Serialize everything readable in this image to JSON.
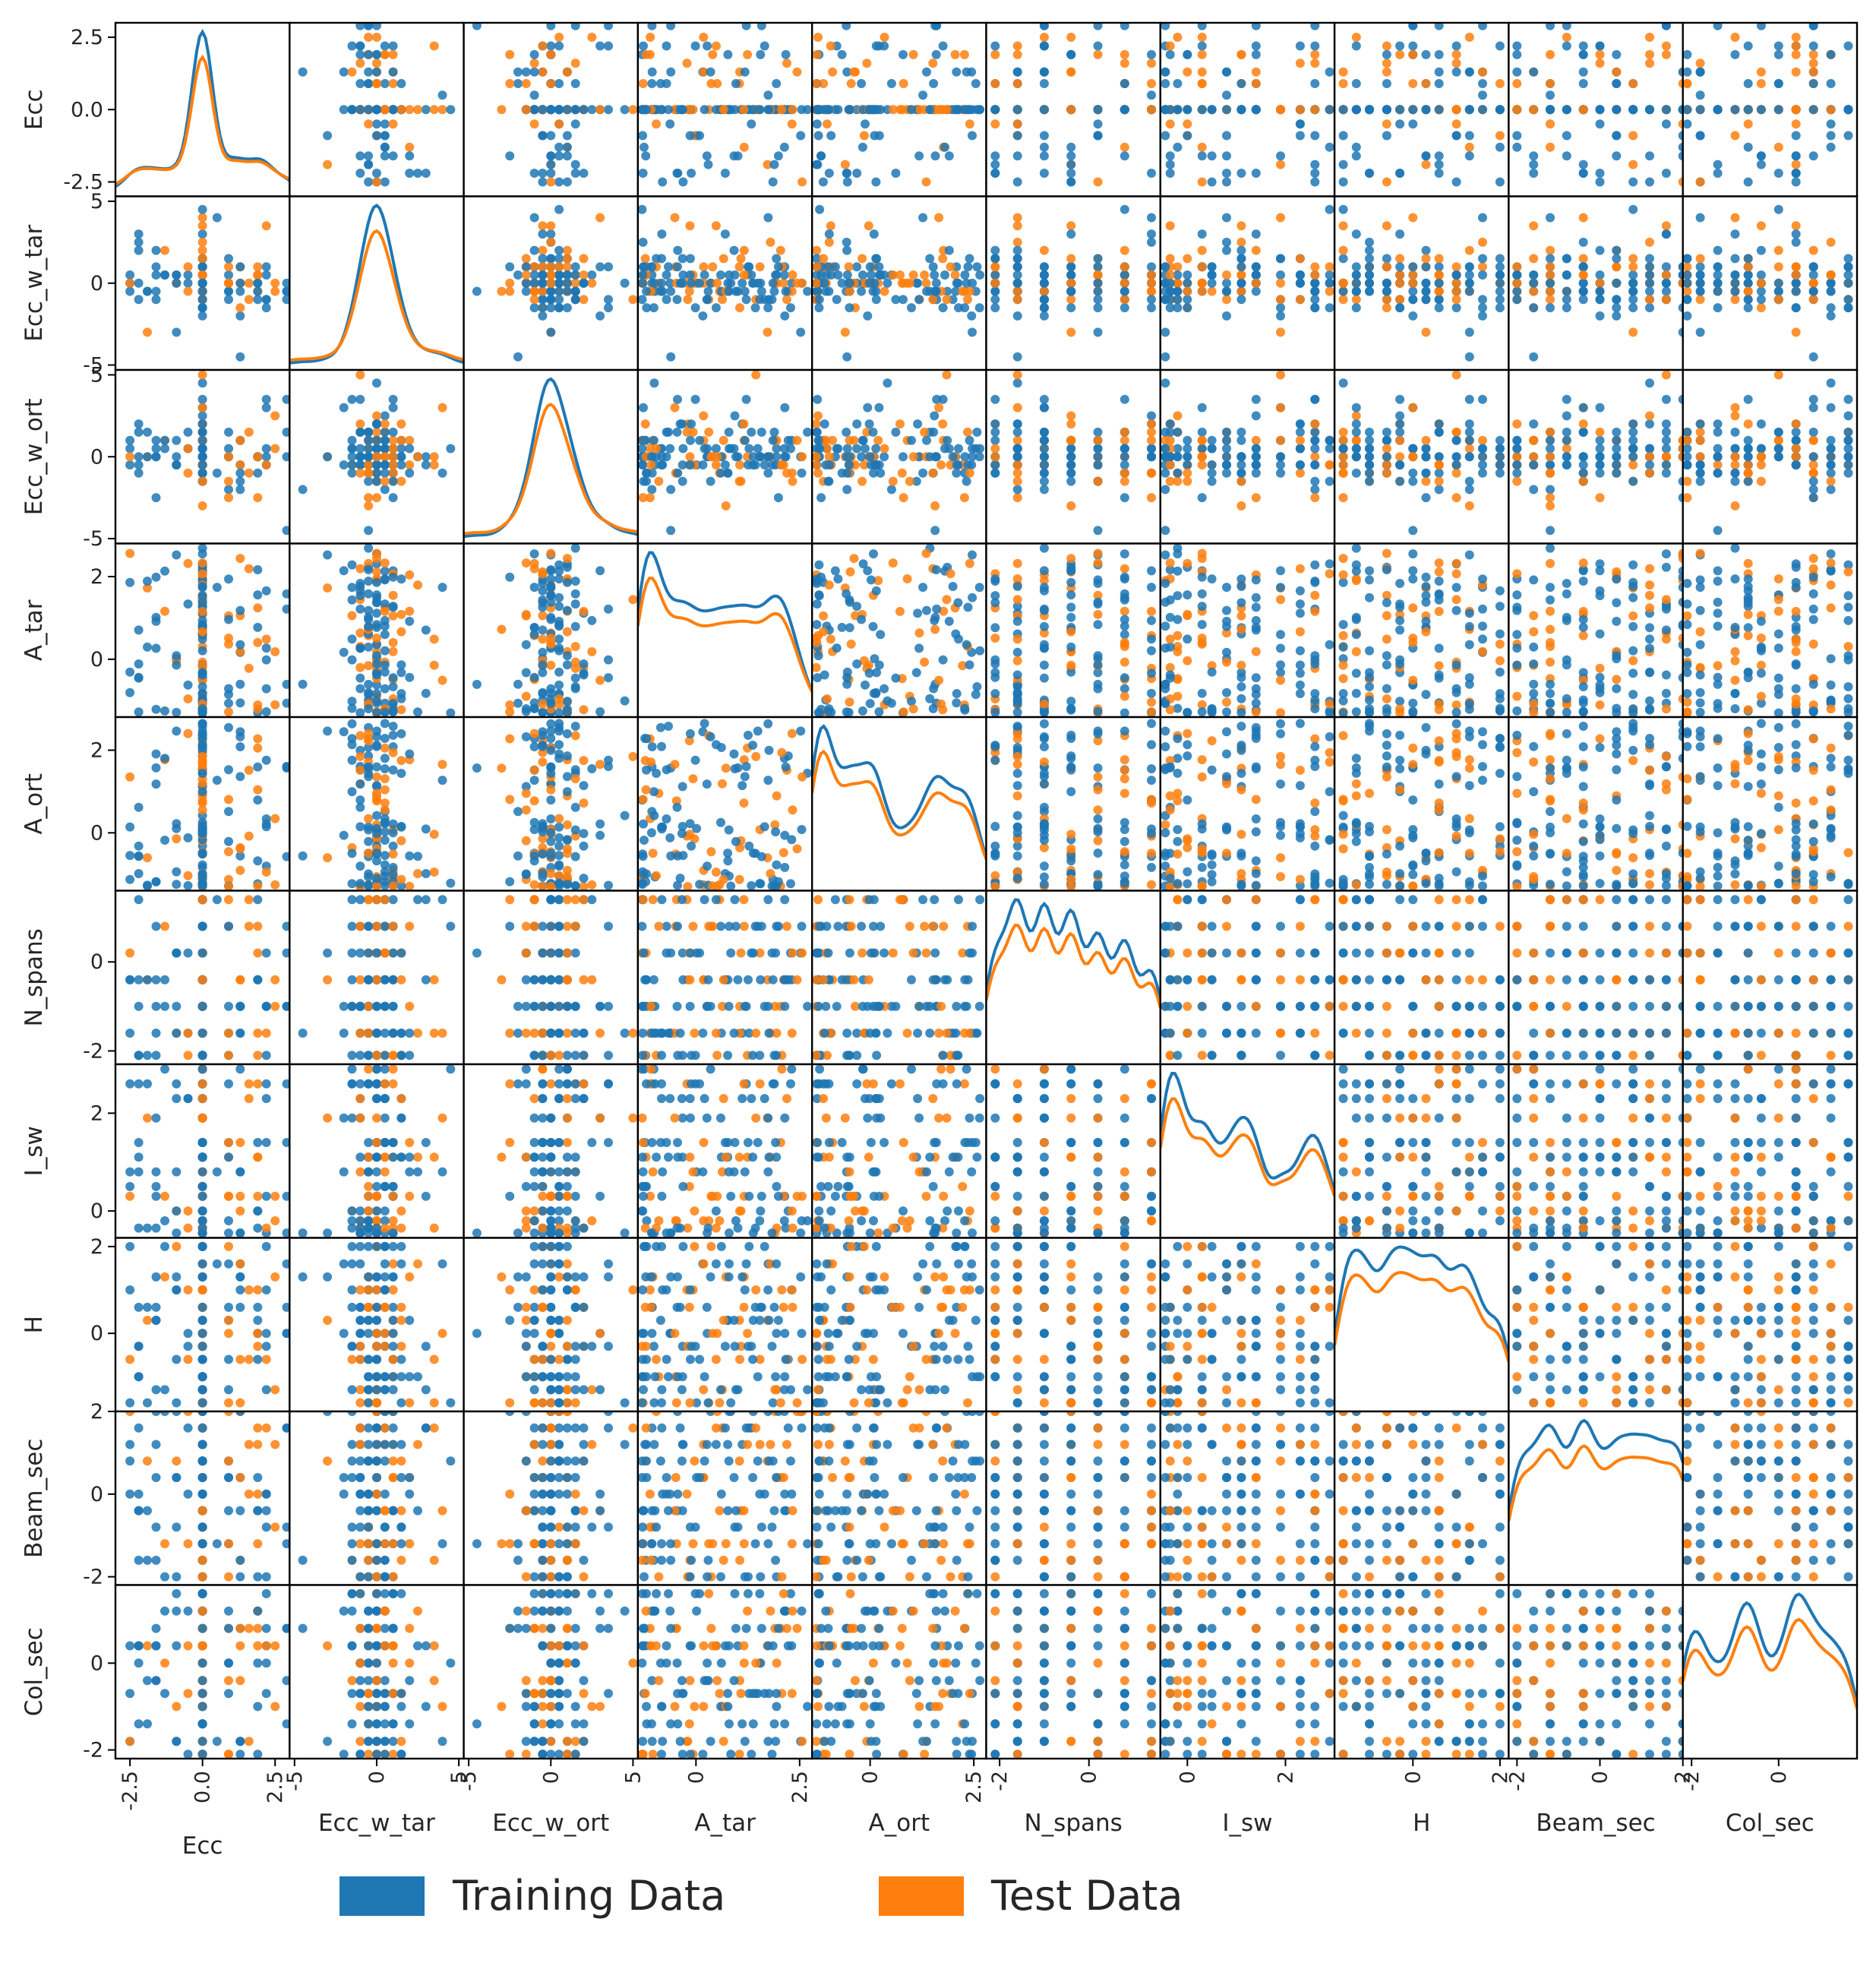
{
  "chart_data": {
    "type": "scatter_matrix",
    "title": "",
    "variables": [
      "Ecc",
      "Ecc_w_tar",
      "Ecc_w_ort",
      "A_tar",
      "A_ort",
      "N_spans",
      "I_sw",
      "H",
      "Beam_sec",
      "Col_sec"
    ],
    "ranges": {
      "Ecc": [
        -3,
        3
      ],
      "Ecc_w_tar": [
        -5.3,
        5.3
      ],
      "Ecc_w_ort": [
        -5.3,
        5.3
      ],
      "A_tar": [
        -1.4,
        2.8
      ],
      "A_ort": [
        -1.4,
        2.8
      ],
      "N_spans": [
        -2.3,
        1.6
      ],
      "I_sw": [
        -0.55,
        3.0
      ],
      "H": [
        -1.8,
        2.2
      ],
      "Beam_sec": [
        -2.2,
        2.0
      ],
      "Col_sec": [
        -2.2,
        1.8
      ]
    },
    "y_ticks": {
      "Ecc": [
        -2.5,
        0.0,
        2.5
      ],
      "Ecc_w_tar": [
        -5,
        0,
        5
      ],
      "Ecc_w_ort": [
        -5,
        0,
        5
      ],
      "A_tar": [
        0,
        2
      ],
      "A_ort": [
        0,
        2
      ],
      "N_spans": [
        -2,
        0
      ],
      "I_sw": [
        0,
        2
      ],
      "H": [
        0,
        2
      ],
      "Beam_sec": [
        -2,
        0,
        2
      ],
      "Col_sec": [
        -2,
        0
      ]
    },
    "x_ticks": {
      "Ecc": [
        -2.5,
        0.0,
        2.5
      ],
      "Ecc_w_tar": [
        -5,
        0,
        5
      ],
      "Ecc_w_ort": [
        -5,
        0,
        5
      ],
      "A_tar": [
        0,
        2.5
      ],
      "A_ort": [
        0,
        2.5
      ],
      "N_spans": [
        -2,
        0
      ],
      "I_sw": [
        0,
        2
      ],
      "H": [
        0,
        2
      ],
      "Beam_sec": [
        -2,
        0,
        2
      ],
      "Col_sec": [
        -2,
        0
      ]
    },
    "series": [
      {
        "name": "Training Data",
        "color": "#1f77b4"
      },
      {
        "name": "Test Data",
        "color": "#ff7f0e"
      }
    ],
    "diagonal": "density",
    "off_diagonal": "scatter",
    "legend_position": "bottom-center"
  }
}
